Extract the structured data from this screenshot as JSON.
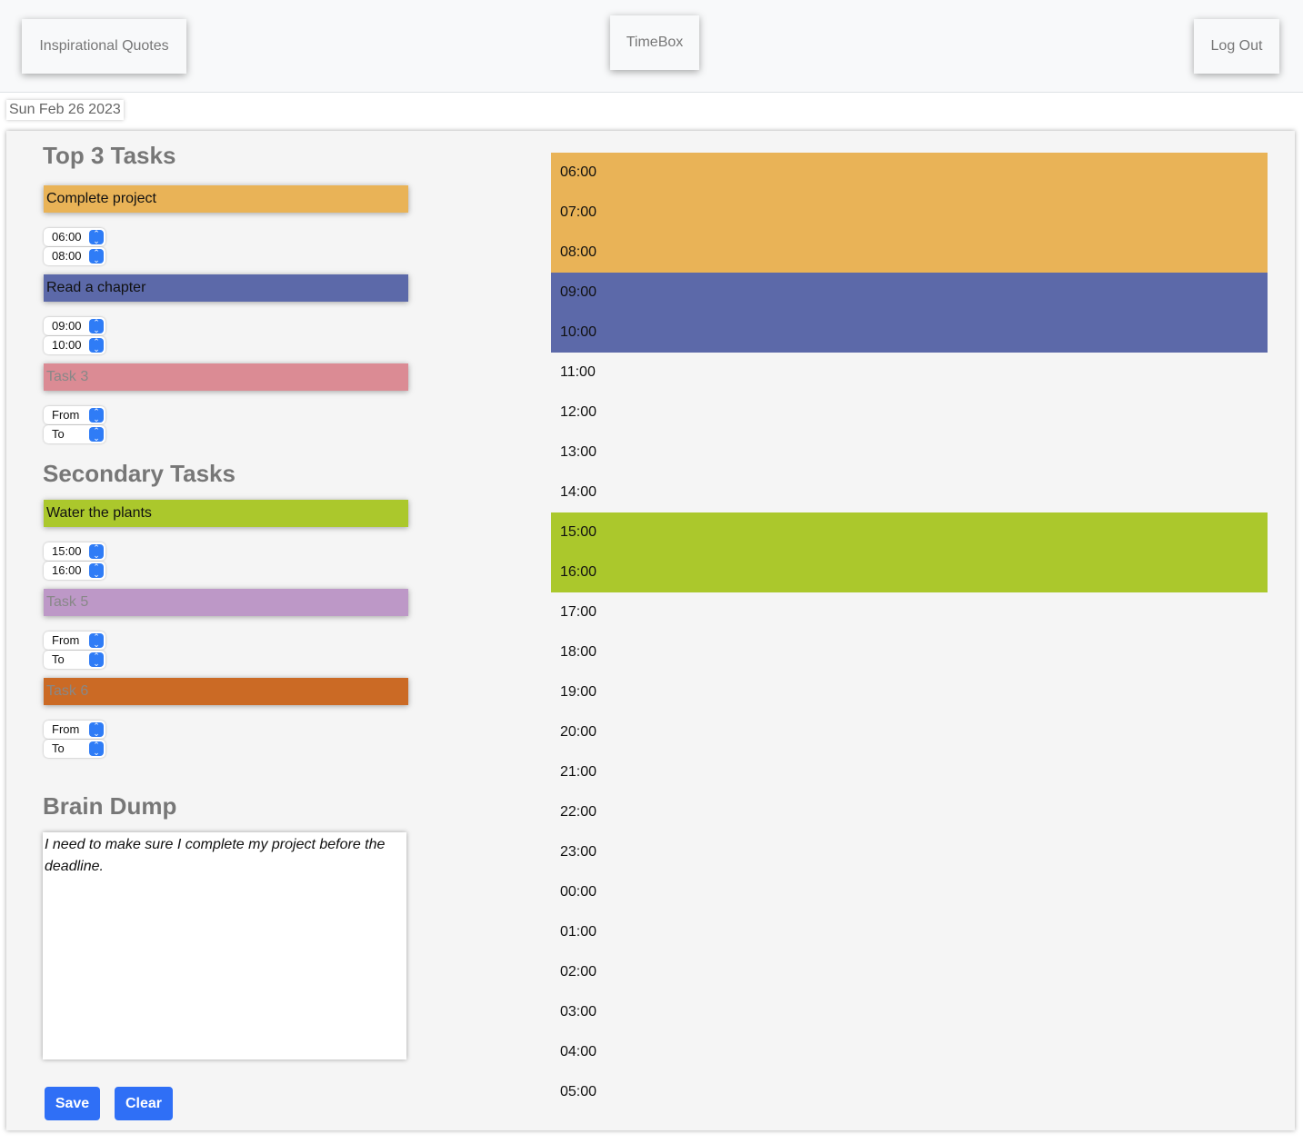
{
  "nav": {
    "quotes": "Inspirational Quotes",
    "title": "TimeBox",
    "logout": "Log Out"
  },
  "date": "Sun Feb 26 2023",
  "top_heading": "Top 3 Tasks",
  "secondary_heading": "Secondary Tasks",
  "colors": {
    "orange": "#e9b357",
    "blue": "#5c69a9",
    "pink": "#db8b94",
    "green": "#abc82c",
    "purple": "#bd98c7",
    "rust": "#cb6a25"
  },
  "tasks": [
    {
      "text": "Complete project",
      "placeholder": "",
      "from": "06:00",
      "to": "08:00",
      "color": "#e9b357"
    },
    {
      "text": "Read a chapter",
      "placeholder": "",
      "from": "09:00",
      "to": "10:00",
      "color": "#5c69a9"
    },
    {
      "text": "",
      "placeholder": "Task 3",
      "from": "From",
      "to": "To",
      "color": "#db8b94"
    },
    {
      "text": "Water the plants",
      "placeholder": "",
      "from": "15:00",
      "to": "16:00",
      "color": "#abc82c"
    },
    {
      "text": "",
      "placeholder": "Task 5",
      "from": "From",
      "to": "To",
      "color": "#bd98c7"
    },
    {
      "text": "",
      "placeholder": "Task 6",
      "from": "From",
      "to": "To",
      "color": "#cb6a25"
    }
  ],
  "brain_dump": {
    "heading": "Brain Dump",
    "text": "I need to make sure I complete my project before the deadline."
  },
  "buttons": {
    "save": "Save",
    "clear": "Clear"
  },
  "hours": [
    {
      "label": "06:00",
      "color": "#e9b357"
    },
    {
      "label": "07:00",
      "color": "#e9b357"
    },
    {
      "label": "08:00",
      "color": "#e9b357"
    },
    {
      "label": "09:00",
      "color": "#5c69a9"
    },
    {
      "label": "10:00",
      "color": "#5c69a9"
    },
    {
      "label": "11:00",
      "color": ""
    },
    {
      "label": "12:00",
      "color": ""
    },
    {
      "label": "13:00",
      "color": ""
    },
    {
      "label": "14:00",
      "color": ""
    },
    {
      "label": "15:00",
      "color": "#abc82c"
    },
    {
      "label": "16:00",
      "color": "#abc82c"
    },
    {
      "label": "17:00",
      "color": ""
    },
    {
      "label": "18:00",
      "color": ""
    },
    {
      "label": "19:00",
      "color": ""
    },
    {
      "label": "20:00",
      "color": ""
    },
    {
      "label": "21:00",
      "color": ""
    },
    {
      "label": "22:00",
      "color": ""
    },
    {
      "label": "23:00",
      "color": ""
    },
    {
      "label": "00:00",
      "color": ""
    },
    {
      "label": "01:00",
      "color": ""
    },
    {
      "label": "02:00",
      "color": ""
    },
    {
      "label": "03:00",
      "color": ""
    },
    {
      "label": "04:00",
      "color": ""
    },
    {
      "label": "05:00",
      "color": ""
    }
  ]
}
